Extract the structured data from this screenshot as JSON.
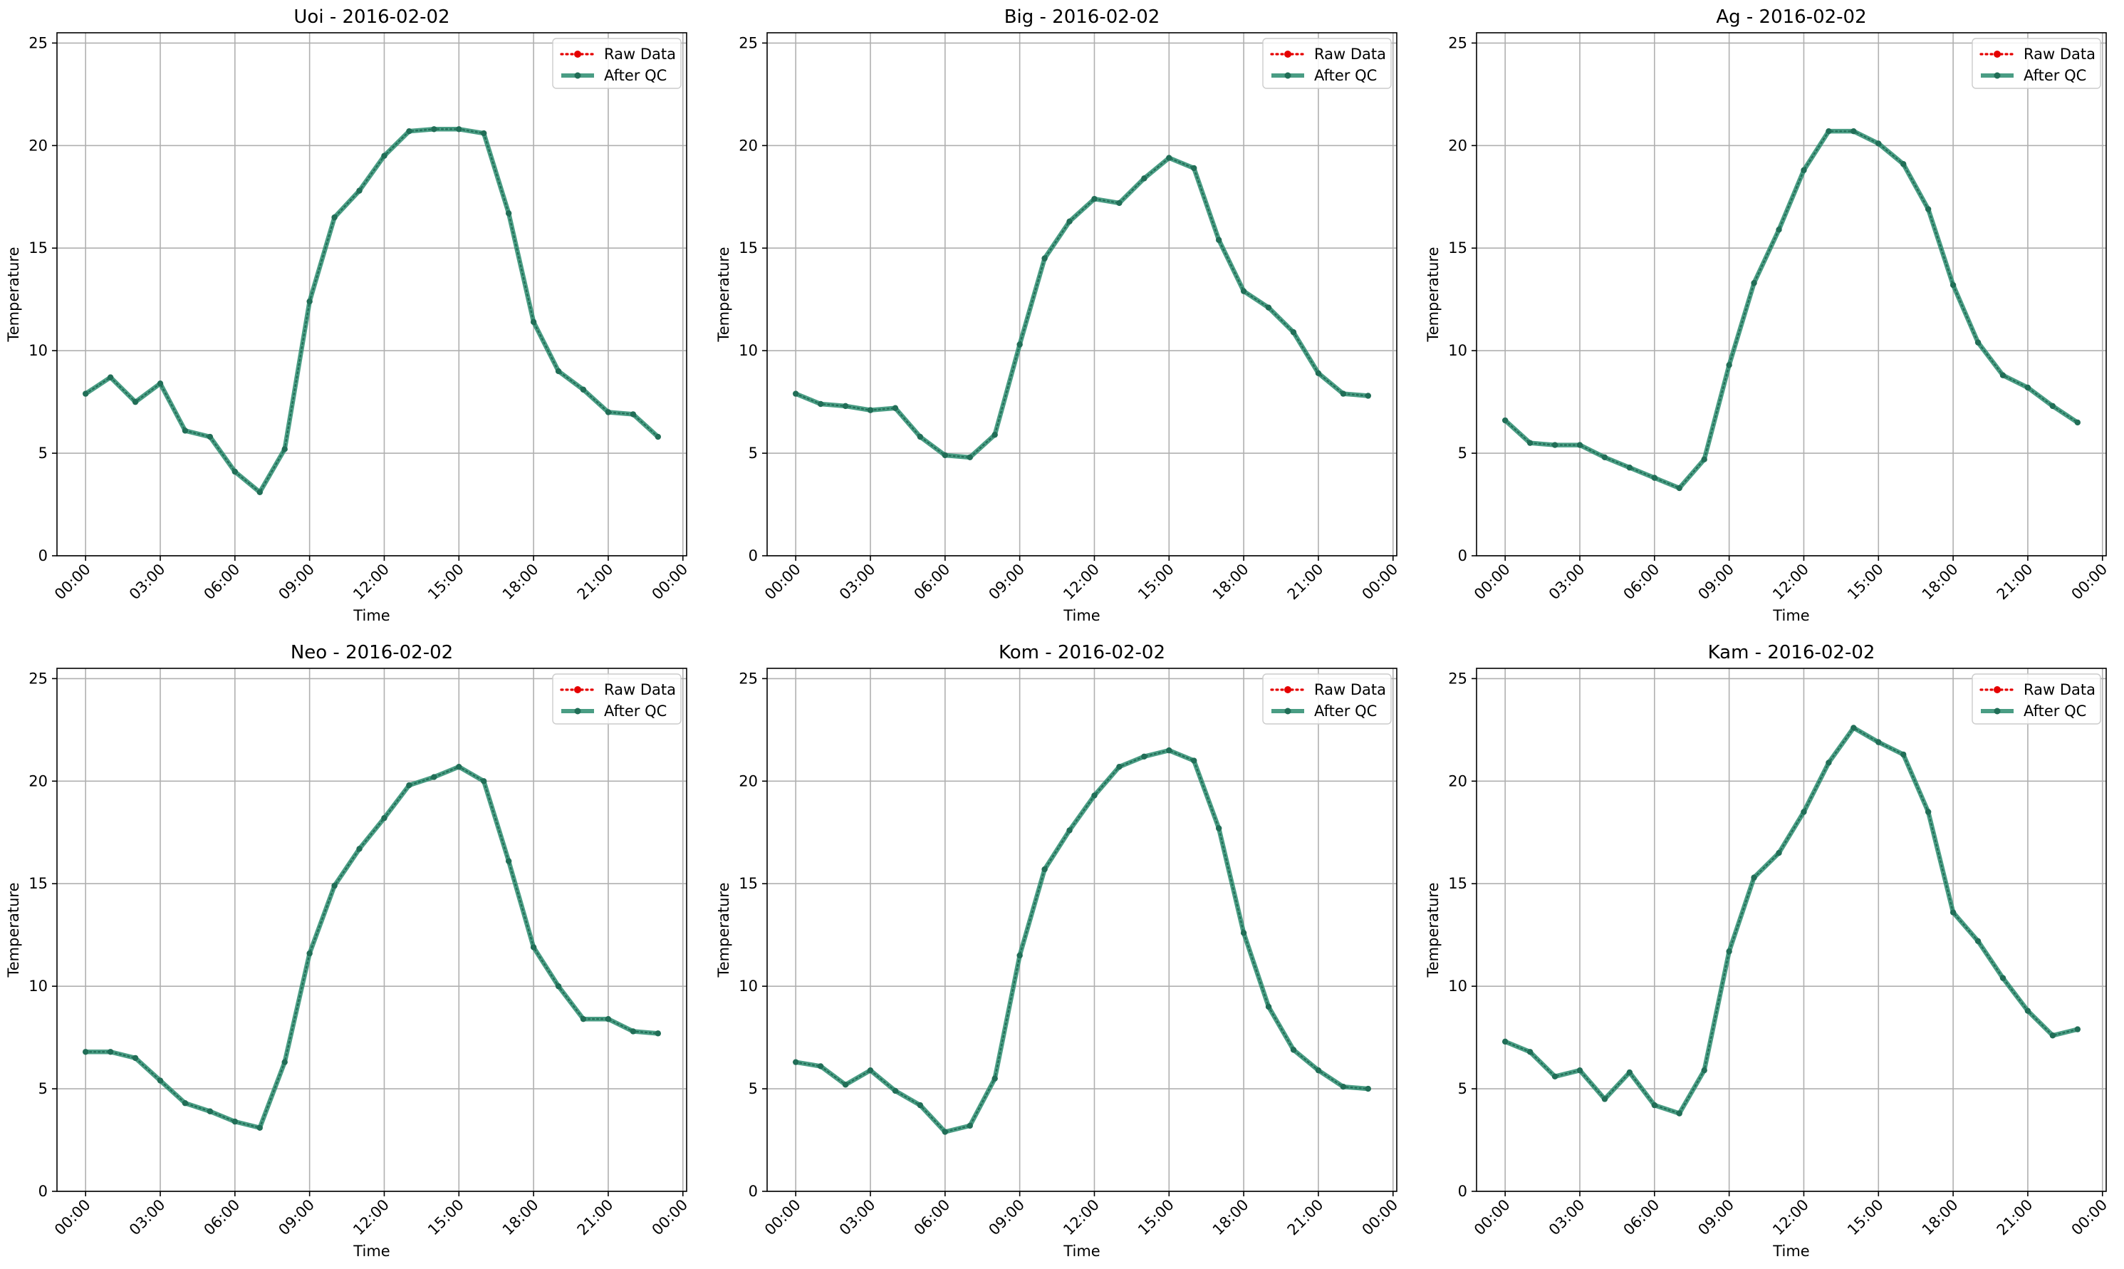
{
  "figure": {
    "background": "#ffffff"
  },
  "colors": {
    "raw": "#e50000",
    "qc": "#2a8c6e",
    "qc_marker": "#216e57",
    "grid": "#b0b0b0",
    "axis": "#000000"
  },
  "chart_data": [
    {
      "type": "line",
      "title": "Uoi - 2016-02-02",
      "xlabel": "Time",
      "ylabel": "Temperature",
      "xlim": [
        -1.15,
        24.15
      ],
      "ylim": [
        0,
        25.5
      ],
      "yticks": [
        0,
        5,
        10,
        15,
        20,
        25
      ],
      "xticks": [
        0,
        3,
        6,
        9,
        12,
        15,
        18,
        21,
        24
      ],
      "xtick_labels": [
        "00:00",
        "03:00",
        "06:00",
        "09:00",
        "12:00",
        "15:00",
        "18:00",
        "21:00",
        "00:00"
      ],
      "grid": true,
      "legend": "top-right",
      "x": [
        0,
        1,
        2,
        3,
        4,
        5,
        6,
        7,
        8,
        9,
        10,
        11,
        12,
        13,
        14,
        15,
        16,
        17,
        18,
        19,
        20,
        21,
        22,
        23
      ],
      "series": [
        {
          "name": "Raw Data",
          "style": "dotted-marker",
          "values": [
            7.9,
            8.7,
            7.5,
            8.4,
            6.1,
            5.8,
            4.1,
            3.1,
            5.2,
            12.4,
            16.5,
            17.8,
            19.5,
            20.7,
            20.8,
            20.8,
            20.6,
            16.7,
            11.4,
            9.0,
            8.1,
            7.0,
            6.9,
            5.8
          ]
        },
        {
          "name": "After QC",
          "style": "solid-marker",
          "values": [
            7.9,
            8.7,
            7.5,
            8.4,
            6.1,
            5.8,
            4.1,
            3.1,
            5.2,
            12.4,
            16.5,
            17.8,
            19.5,
            20.7,
            20.8,
            20.8,
            20.6,
            16.7,
            11.4,
            9.0,
            8.1,
            7.0,
            6.9,
            5.8
          ]
        }
      ]
    },
    {
      "type": "line",
      "title": "Big - 2016-02-02",
      "xlabel": "Time",
      "ylabel": "Temperature",
      "xlim": [
        -1.15,
        24.15
      ],
      "ylim": [
        0,
        25.5
      ],
      "yticks": [
        0,
        5,
        10,
        15,
        20,
        25
      ],
      "xticks": [
        0,
        3,
        6,
        9,
        12,
        15,
        18,
        21,
        24
      ],
      "xtick_labels": [
        "00:00",
        "03:00",
        "06:00",
        "09:00",
        "12:00",
        "15:00",
        "18:00",
        "21:00",
        "00:00"
      ],
      "grid": true,
      "legend": "top-right",
      "x": [
        0,
        1,
        2,
        3,
        4,
        5,
        6,
        7,
        8,
        9,
        10,
        11,
        12,
        13,
        14,
        15,
        16,
        17,
        18,
        19,
        20,
        21,
        22,
        23
      ],
      "series": [
        {
          "name": "Raw Data",
          "style": "dotted-marker",
          "values": [
            7.9,
            7.4,
            7.3,
            7.1,
            7.2,
            5.8,
            4.9,
            4.8,
            5.9,
            10.3,
            14.5,
            16.3,
            17.4,
            17.2,
            18.4,
            19.4,
            18.9,
            15.4,
            12.9,
            12.1,
            10.9,
            8.9,
            7.9,
            7.8
          ]
        },
        {
          "name": "After QC",
          "style": "solid-marker",
          "values": [
            7.9,
            7.4,
            7.3,
            7.1,
            7.2,
            5.8,
            4.9,
            4.8,
            5.9,
            10.3,
            14.5,
            16.3,
            17.4,
            17.2,
            18.4,
            19.4,
            18.9,
            15.4,
            12.9,
            12.1,
            10.9,
            8.9,
            7.9,
            7.8
          ]
        }
      ]
    },
    {
      "type": "line",
      "title": "Ag - 2016-02-02",
      "xlabel": "Time",
      "ylabel": "Temperature",
      "xlim": [
        -1.15,
        24.15
      ],
      "ylim": [
        0,
        25.5
      ],
      "yticks": [
        0,
        5,
        10,
        15,
        20,
        25
      ],
      "xticks": [
        0,
        3,
        6,
        9,
        12,
        15,
        18,
        21,
        24
      ],
      "xtick_labels": [
        "00:00",
        "03:00",
        "06:00",
        "09:00",
        "12:00",
        "15:00",
        "18:00",
        "21:00",
        "00:00"
      ],
      "grid": true,
      "legend": "top-right",
      "x": [
        0,
        1,
        2,
        3,
        4,
        5,
        6,
        7,
        8,
        9,
        10,
        11,
        12,
        13,
        14,
        15,
        16,
        17,
        18,
        19,
        20,
        21,
        22,
        23
      ],
      "series": [
        {
          "name": "Raw Data",
          "style": "dotted-marker",
          "values": [
            6.6,
            5.5,
            5.4,
            5.4,
            4.8,
            4.3,
            3.8,
            3.3,
            4.7,
            9.3,
            13.3,
            15.9,
            18.8,
            20.7,
            20.7,
            20.1,
            19.1,
            16.9,
            13.2,
            10.4,
            8.8,
            8.2,
            7.3,
            6.5
          ]
        },
        {
          "name": "After QC",
          "style": "solid-marker",
          "values": [
            6.6,
            5.5,
            5.4,
            5.4,
            4.8,
            4.3,
            3.8,
            3.3,
            4.7,
            9.3,
            13.3,
            15.9,
            18.8,
            20.7,
            20.7,
            20.1,
            19.1,
            16.9,
            13.2,
            10.4,
            8.8,
            8.2,
            7.3,
            6.5
          ]
        }
      ]
    },
    {
      "type": "line",
      "title": "Neo - 2016-02-02",
      "xlabel": "Time",
      "ylabel": "Temperature",
      "xlim": [
        -1.15,
        24.15
      ],
      "ylim": [
        0,
        25.5
      ],
      "yticks": [
        0,
        5,
        10,
        15,
        20,
        25
      ],
      "xticks": [
        0,
        3,
        6,
        9,
        12,
        15,
        18,
        21,
        24
      ],
      "xtick_labels": [
        "00:00",
        "03:00",
        "06:00",
        "09:00",
        "12:00",
        "15:00",
        "18:00",
        "21:00",
        "00:00"
      ],
      "grid": true,
      "legend": "top-right",
      "x": [
        0,
        1,
        2,
        3,
        4,
        5,
        6,
        7,
        8,
        9,
        10,
        11,
        12,
        13,
        14,
        15,
        16,
        17,
        18,
        19,
        20,
        21,
        22,
        23
      ],
      "series": [
        {
          "name": "Raw Data",
          "style": "dotted-marker",
          "values": [
            6.8,
            6.8,
            6.5,
            5.4,
            4.3,
            3.9,
            3.4,
            3.1,
            6.3,
            11.6,
            14.9,
            16.7,
            18.2,
            19.8,
            20.2,
            20.7,
            20.0,
            16.1,
            11.9,
            10.0,
            8.4,
            8.4,
            7.8,
            7.7
          ]
        },
        {
          "name": "After QC",
          "style": "solid-marker",
          "values": [
            6.8,
            6.8,
            6.5,
            5.4,
            4.3,
            3.9,
            3.4,
            3.1,
            6.3,
            11.6,
            14.9,
            16.7,
            18.2,
            19.8,
            20.2,
            20.7,
            20.0,
            16.1,
            11.9,
            10.0,
            8.4,
            8.4,
            7.8,
            7.7
          ]
        }
      ]
    },
    {
      "type": "line",
      "title": "Kom - 2016-02-02",
      "xlabel": "Time",
      "ylabel": "Temperature",
      "xlim": [
        -1.15,
        24.15
      ],
      "ylim": [
        0,
        25.5
      ],
      "yticks": [
        0,
        5,
        10,
        15,
        20,
        25
      ],
      "xticks": [
        0,
        3,
        6,
        9,
        12,
        15,
        18,
        21,
        24
      ],
      "xtick_labels": [
        "00:00",
        "03:00",
        "06:00",
        "09:00",
        "12:00",
        "15:00",
        "18:00",
        "21:00",
        "00:00"
      ],
      "grid": true,
      "legend": "top-right",
      "x": [
        0,
        1,
        2,
        3,
        4,
        5,
        6,
        7,
        8,
        9,
        10,
        11,
        12,
        13,
        14,
        15,
        16,
        17,
        18,
        19,
        20,
        21,
        22,
        23
      ],
      "series": [
        {
          "name": "Raw Data",
          "style": "dotted-marker",
          "values": [
            6.3,
            6.1,
            5.2,
            5.9,
            4.9,
            4.2,
            2.9,
            3.2,
            5.5,
            11.5,
            15.7,
            17.6,
            19.3,
            20.7,
            21.2,
            21.5,
            21.0,
            17.7,
            12.6,
            9.0,
            6.9,
            5.9,
            5.1,
            5.0
          ]
        },
        {
          "name": "After QC",
          "style": "solid-marker",
          "values": [
            6.3,
            6.1,
            5.2,
            5.9,
            4.9,
            4.2,
            2.9,
            3.2,
            5.5,
            11.5,
            15.7,
            17.6,
            19.3,
            20.7,
            21.2,
            21.5,
            21.0,
            17.7,
            12.6,
            9.0,
            6.9,
            5.9,
            5.1,
            5.0
          ]
        }
      ]
    },
    {
      "type": "line",
      "title": "Kam - 2016-02-02",
      "xlabel": "Time",
      "ylabel": "Temperature",
      "xlim": [
        -1.15,
        24.15
      ],
      "ylim": [
        0,
        25.5
      ],
      "yticks": [
        0,
        5,
        10,
        15,
        20,
        25
      ],
      "xticks": [
        0,
        3,
        6,
        9,
        12,
        15,
        18,
        21,
        24
      ],
      "xtick_labels": [
        "00:00",
        "03:00",
        "06:00",
        "09:00",
        "12:00",
        "15:00",
        "18:00",
        "21:00",
        "00:00"
      ],
      "grid": true,
      "legend": "top-right",
      "x": [
        0,
        1,
        2,
        3,
        4,
        5,
        6,
        7,
        8,
        9,
        10,
        11,
        12,
        13,
        14,
        15,
        16,
        17,
        18,
        19,
        20,
        21,
        22,
        23
      ],
      "series": [
        {
          "name": "Raw Data",
          "style": "dotted-marker",
          "values": [
            7.3,
            6.8,
            5.6,
            5.9,
            4.5,
            5.8,
            4.2,
            3.8,
            5.9,
            11.7,
            15.3,
            16.5,
            18.5,
            20.9,
            22.6,
            21.9,
            21.3,
            18.5,
            13.6,
            12.2,
            10.4,
            8.8,
            7.6,
            7.9
          ]
        },
        {
          "name": "After QC",
          "style": "solid-marker",
          "values": [
            7.3,
            6.8,
            5.6,
            5.9,
            4.5,
            5.8,
            4.2,
            3.8,
            5.9,
            11.7,
            15.3,
            16.5,
            18.5,
            20.9,
            22.6,
            21.9,
            21.3,
            18.5,
            13.6,
            12.2,
            10.4,
            8.8,
            7.6,
            7.9
          ]
        }
      ]
    }
  ]
}
